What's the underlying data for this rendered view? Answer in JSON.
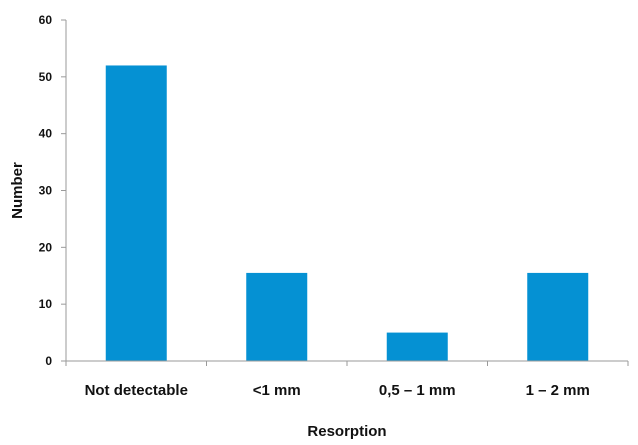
{
  "chart_data": {
    "type": "bar",
    "title": "",
    "xlabel": "Resorption",
    "ylabel": "Number",
    "categories": [
      "Not detectable",
      "<1 mm",
      "0,5 – 1 mm",
      "1 – 2 mm"
    ],
    "values": [
      52,
      15.5,
      5,
      15.5
    ],
    "ylim": [
      0,
      60
    ],
    "yticks": [
      0,
      10,
      20,
      30,
      40,
      50,
      60
    ],
    "grid": false,
    "legend": "none",
    "bar_color": "#0591d3"
  }
}
